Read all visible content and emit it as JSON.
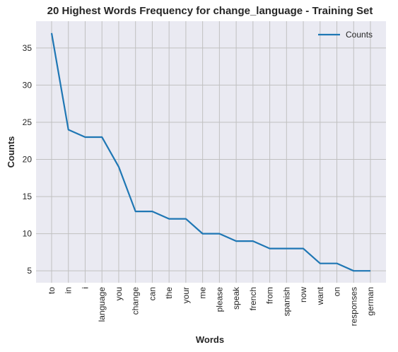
{
  "chart_data": {
    "type": "line",
    "title": "20 Highest Words Frequency for change_language - Training Set",
    "xlabel": "Words",
    "ylabel": "Counts",
    "categories": [
      "to",
      "in",
      "i",
      "language",
      "you",
      "change",
      "can",
      "the",
      "your",
      "me",
      "please",
      "speak",
      "french",
      "from",
      "spanish",
      "now",
      "want",
      "on",
      "responses",
      "german"
    ],
    "series": [
      {
        "name": "Counts",
        "values": [
          37,
          24,
          23,
          23,
          19,
          13,
          13,
          12,
          12,
          10,
          10,
          9,
          9,
          8,
          8,
          8,
          6,
          6,
          5,
          5
        ]
      }
    ],
    "yticks": [
      5,
      10,
      15,
      20,
      25,
      30,
      35
    ],
    "ylim": [
      3.4,
      38.6
    ],
    "grid": true,
    "legend_position": "top-right",
    "colors": {
      "line": "#1f77b4",
      "background": "#eaeaf2",
      "grid": "#c0c0c0"
    }
  }
}
